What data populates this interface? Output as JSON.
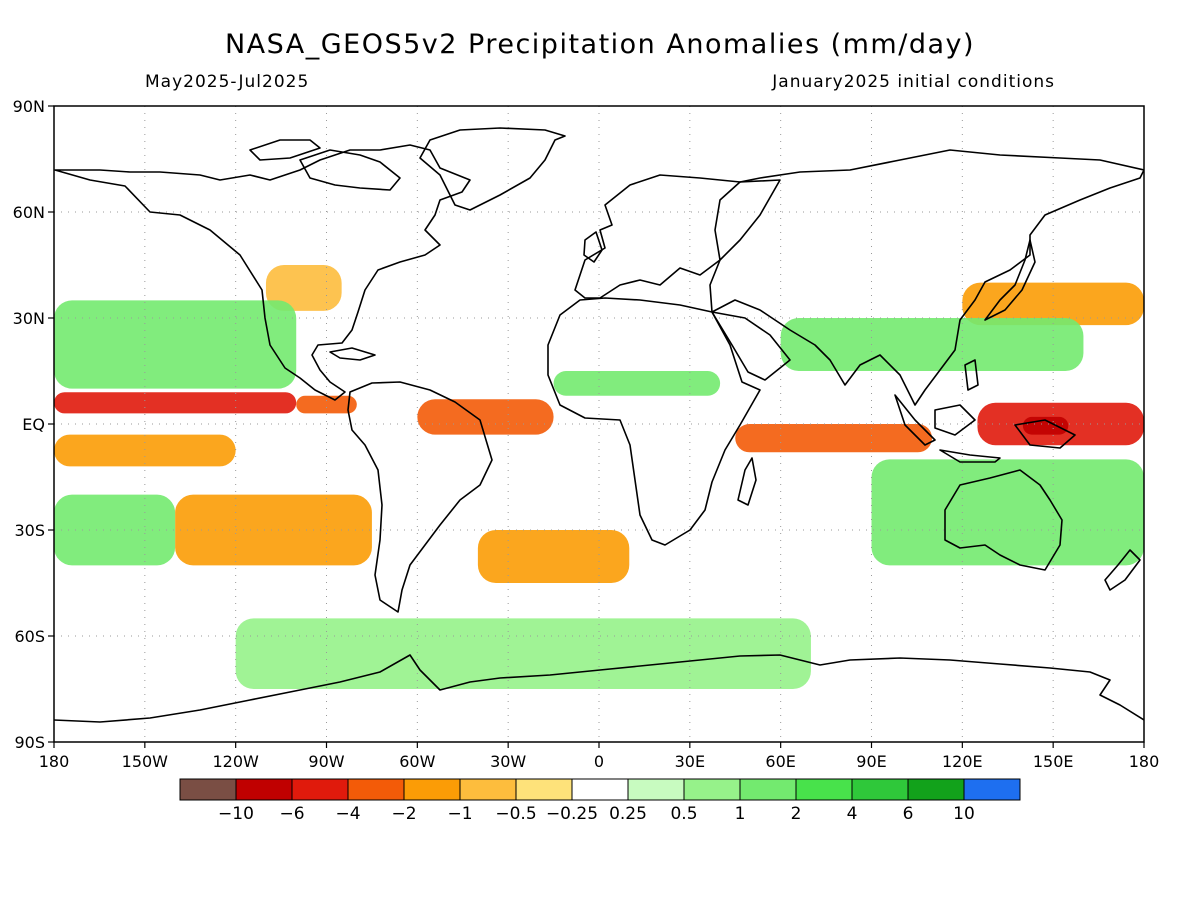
{
  "header": {
    "title": "NASA_GEOS5v2 Precipitation Anomalies (mm/day)",
    "period": "May2025-Jul2025",
    "init": "January2025 initial conditions"
  },
  "axes": {
    "lat_labels": [
      "90N",
      "60N",
      "30N",
      "EQ",
      "30S",
      "60S",
      "90S"
    ],
    "lat_values": [
      90,
      60,
      30,
      0,
      -30,
      -60,
      -90
    ],
    "lon_labels": [
      "180",
      "150W",
      "120W",
      "90W",
      "60W",
      "30W",
      "0",
      "30E",
      "60E",
      "90E",
      "120E",
      "150E",
      "180"
    ],
    "lon_values": [
      -180,
      -150,
      -120,
      -90,
      -60,
      -30,
      0,
      30,
      60,
      90,
      120,
      150,
      180
    ]
  },
  "colorbar": {
    "colors": [
      "#7a4e44",
      "#c00000",
      "#e01a0c",
      "#f35b08",
      "#fb9c06",
      "#fdbd3d",
      "#fee27a",
      "#ffffff",
      "#c8fbc0",
      "#96f28a",
      "#73ea6f",
      "#48e24b",
      "#2fc83a",
      "#12a21b",
      "#1e6ff0"
    ],
    "labels": [
      "-10",
      "-6",
      "-4",
      "-2",
      "-1",
      "-0.5",
      "-0.25",
      "0.25",
      "0.5",
      "1",
      "2",
      "4",
      "6",
      "10"
    ]
  },
  "map_data": {
    "type": "heatmap",
    "variable": "precipitation anomaly (mm/day)",
    "lon_range": [
      -180,
      180
    ],
    "lat_range": [
      -90,
      90
    ],
    "anomaly_regions": [
      {
        "lon": [
          -180,
          -100
        ],
        "lat": [
          3,
          9
        ],
        "level": "-4"
      },
      {
        "lon": [
          -100,
          -80
        ],
        "lat": [
          3,
          8
        ],
        "level": "-2"
      },
      {
        "lon": [
          -60,
          -15
        ],
        "lat": [
          -3,
          7
        ],
        "level": "-2"
      },
      {
        "lon": [
          45,
          110
        ],
        "lat": [
          -8,
          0
        ],
        "level": "-2"
      },
      {
        "lon": [
          125,
          180
        ],
        "lat": [
          -6,
          6
        ],
        "level": "-4"
      },
      {
        "lon": [
          140,
          155
        ],
        "lat": [
          -3,
          2
        ],
        "level": "-6"
      },
      {
        "lon": [
          -180,
          -120
        ],
        "lat": [
          -12,
          -3
        ],
        "level": "-1"
      },
      {
        "lon": [
          -140,
          -75
        ],
        "lat": [
          -40,
          -20
        ],
        "level": "-1"
      },
      {
        "lon": [
          -40,
          10
        ],
        "lat": [
          -45,
          -30
        ],
        "level": "-1"
      },
      {
        "lon": [
          120,
          180
        ],
        "lat": [
          28,
          40
        ],
        "level": "-1"
      },
      {
        "lon": [
          -110,
          -85
        ],
        "lat": [
          32,
          45
        ],
        "level": "-0.5"
      },
      {
        "lon": [
          -180,
          -100
        ],
        "lat": [
          10,
          35
        ],
        "level": "1"
      },
      {
        "lon": [
          -180,
          -140
        ],
        "lat": [
          -40,
          -20
        ],
        "level": "1"
      },
      {
        "lon": [
          -15,
          40
        ],
        "lat": [
          8,
          15
        ],
        "level": "1"
      },
      {
        "lon": [
          60,
          160
        ],
        "lat": [
          15,
          30
        ],
        "level": "1"
      },
      {
        "lon": [
          90,
          180
        ],
        "lat": [
          -40,
          -10
        ],
        "level": "1"
      },
      {
        "lon": [
          -120,
          70
        ],
        "lat": [
          -75,
          -55
        ],
        "level": "0.5"
      }
    ]
  }
}
